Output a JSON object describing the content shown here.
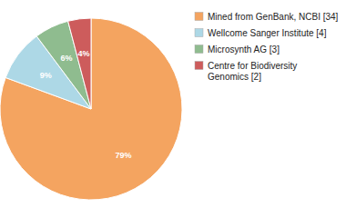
{
  "chart_data": {
    "type": "pie",
    "categories": [
      "Mined from GenBank, NCBI [34]",
      "Wellcome Sanger Institute [4]",
      "Microsynth AG [3]",
      "Centre for Biodiversity\nGenomics [2]"
    ],
    "values": [
      79,
      9,
      6,
      4
    ],
    "value_labels": [
      "79%",
      "9%",
      "6%",
      "4%"
    ],
    "colors": [
      "#F4A460",
      "#ADD8E6",
      "#8FBC8F",
      "#CD5C5C"
    ],
    "data_labels": true,
    "legend": "upper right"
  }
}
